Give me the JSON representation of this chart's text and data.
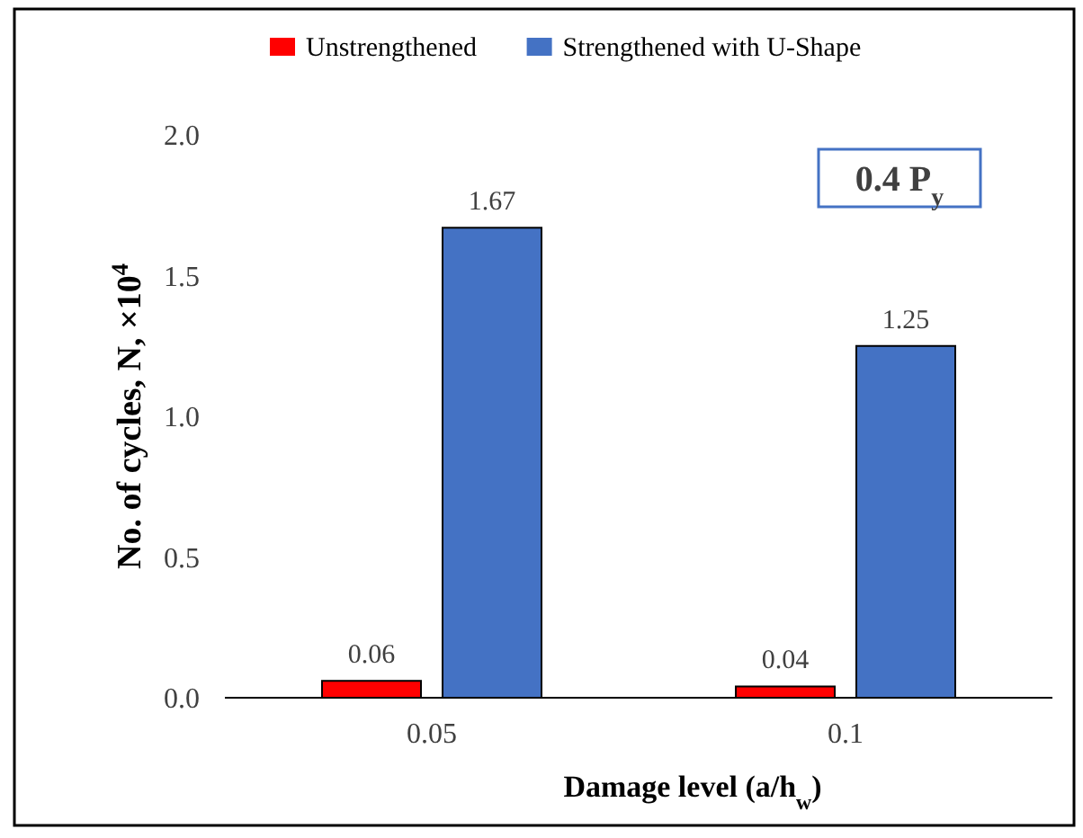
{
  "chart_data": {
    "type": "bar",
    "xlabel": "Damage level  (a/h$_{w}$)",
    "ylabel": "No. of cycles, N, ×10$^{4}$",
    "categories": [
      "0.05",
      "0.1"
    ],
    "series": [
      {
        "name": "Unstrengthened",
        "color": "#ff0000",
        "values": [
          0.06,
          0.04
        ]
      },
      {
        "name": "Strengthened with U-Shape",
        "color": "#4472c4",
        "values": [
          1.67,
          1.25
        ]
      }
    ],
    "ylim": [
      0,
      2
    ],
    "yticks": [
      {
        "value": 0,
        "label": "0.0"
      },
      {
        "value": 0.5,
        "label": "0.5"
      },
      {
        "value": 1,
        "label": "1.0"
      },
      {
        "value": 1.5,
        "label": "1.5"
      },
      {
        "value": 2,
        "label": "2.0"
      }
    ],
    "data_labels": true,
    "legend": "top",
    "grid": false,
    "annotations": [
      "0.4 P$_{y}$"
    ]
  }
}
